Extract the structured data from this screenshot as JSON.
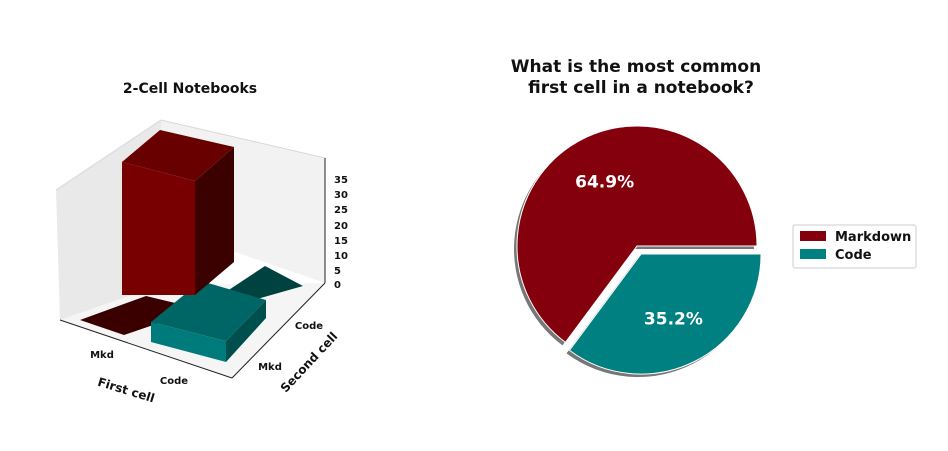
{
  "chart_data": [
    {
      "type": "bar3d",
      "title": "2-Cell Notebooks",
      "xlabel": "First cell",
      "ylabel": "Second cell",
      "x_categories": [
        "Mkd",
        "Code"
      ],
      "y_categories": [
        "Mkd",
        "Code"
      ],
      "z_ticks": [
        "0",
        "5",
        "10",
        "15",
        "20",
        "25",
        "30",
        "35"
      ],
      "zlim": [
        0,
        40
      ],
      "bars": [
        {
          "x": "Mkd",
          "y": "Mkd",
          "value": 0,
          "color": "#7a0000"
        },
        {
          "x": "Code",
          "y": "Mkd",
          "value": 3,
          "color": "#007b7b"
        },
        {
          "x": "Mkd",
          "y": "Code",
          "value": 37,
          "color": "#7a0000"
        },
        {
          "x": "Code",
          "y": "Code",
          "value": 0,
          "color": "#007b7b"
        }
      ]
    },
    {
      "type": "pie",
      "title": "What is the most common\nfirst cell in a notebook?",
      "title_lines": [
        "What is the most common",
        "first cell in a notebook?"
      ],
      "slices": [
        {
          "label": "Markdown",
          "value": 64.9,
          "pct_label": "64.9%",
          "color": "#85000d"
        },
        {
          "label": "Code",
          "value": 35.2,
          "pct_label": "35.2%",
          "color": "#008080"
        }
      ],
      "legend": [
        "Markdown",
        "Code"
      ],
      "legend_position": "right"
    }
  ]
}
